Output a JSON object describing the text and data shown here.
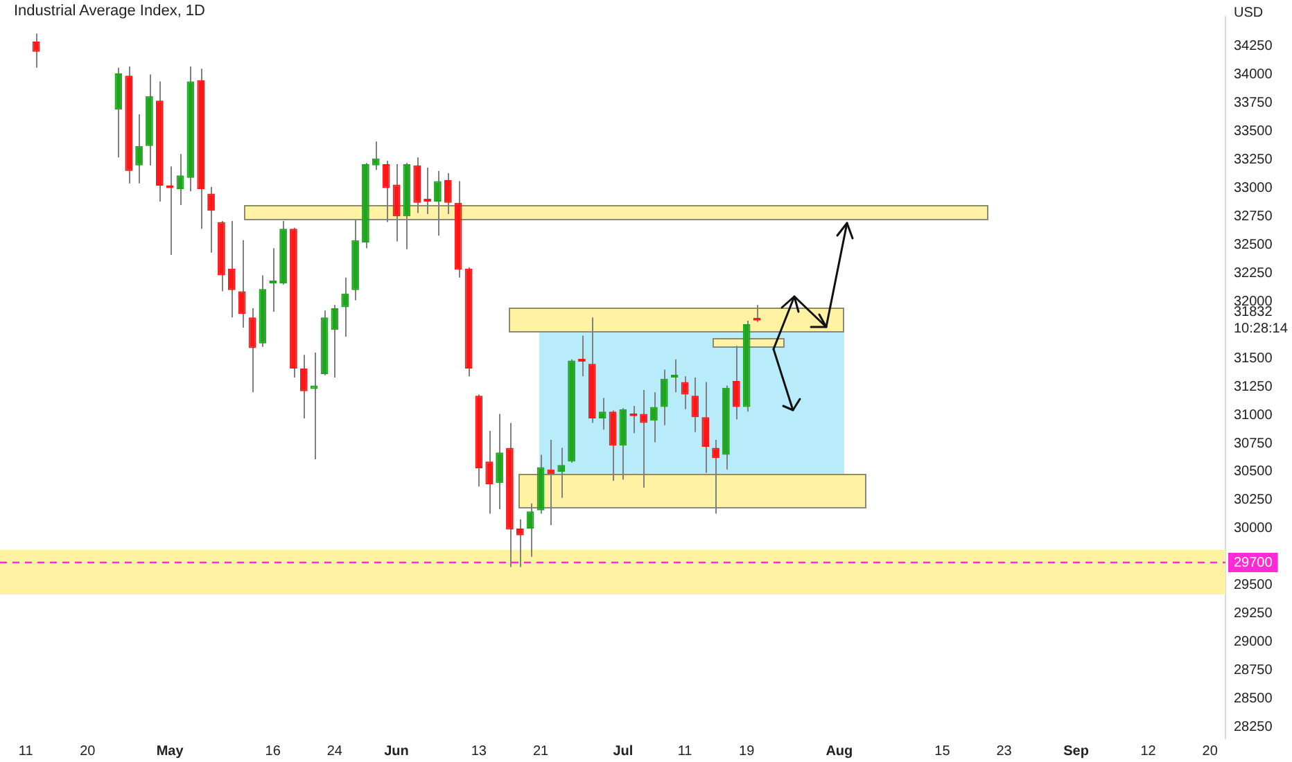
{
  "chart_data": {
    "type": "candlestick",
    "title": "Industrial Average Index, 1D",
    "ylabel": "USD",
    "categories": [
      null,
      null,
      "11",
      null,
      null,
      null,
      null,
      null,
      "20",
      null,
      null,
      null,
      null,
      null,
      null,
      null,
      "May",
      null,
      null,
      null,
      null,
      null,
      null,
      null,
      null,
      null,
      "16",
      null,
      null,
      null,
      null,
      null,
      "24",
      null,
      null,
      null,
      null,
      null,
      "Jun",
      null,
      null,
      null,
      null,
      null,
      null,
      null,
      "13",
      null,
      null,
      null,
      null,
      null,
      "21",
      null,
      null,
      null,
      null,
      null,
      null,
      null,
      "Jul",
      null,
      null,
      null,
      null,
      null,
      "11",
      null,
      null,
      null,
      null,
      null,
      "19",
      null,
      null,
      null,
      null,
      null,
      null,
      null,
      null,
      "Aug",
      null,
      null,
      null,
      null,
      null,
      null,
      null,
      null,
      null,
      "15",
      null,
      null,
      null,
      null,
      null,
      "23",
      null,
      null,
      null,
      null,
      null,
      null,
      "Sep",
      null,
      null,
      null,
      null,
      null,
      null,
      "12",
      null,
      null,
      null,
      null,
      null,
      "20",
      null
    ],
    "ohlc": [
      null,
      null,
      null,
      [
        34290,
        34360,
        34060,
        34200
      ],
      null,
      null,
      null,
      null,
      null,
      null,
      null,
      [
        33690,
        34060,
        33270,
        34010
      ],
      [
        33990,
        34070,
        33040,
        33150
      ],
      [
        33200,
        33650,
        33040,
        33370
      ],
      [
        33370,
        34000,
        33200,
        33810
      ],
      [
        33770,
        33940,
        32880,
        33020
      ],
      [
        33020,
        33190,
        32410,
        33000
      ],
      [
        32990,
        33300,
        32850,
        33110
      ],
      [
        33090,
        34070,
        32970,
        33940
      ],
      [
        33950,
        34050,
        32640,
        32990
      ],
      [
        32950,
        33010,
        32430,
        32800
      ],
      [
        32700,
        32710,
        32090,
        32230
      ],
      [
        32290,
        32710,
        31860,
        32100
      ],
      [
        32090,
        32540,
        31770,
        31890
      ],
      [
        31860,
        31940,
        31200,
        31590
      ],
      [
        31630,
        32230,
        31600,
        32110
      ],
      [
        32160,
        32470,
        31910,
        32170
      ],
      [
        32160,
        32710,
        32150,
        32640
      ],
      [
        32640,
        32650,
        31330,
        31410
      ],
      [
        31410,
        31530,
        30970,
        31210
      ],
      [
        31230,
        31550,
        30610,
        31260
      ],
      [
        31360,
        31920,
        31350,
        31860
      ],
      [
        31750,
        31970,
        31330,
        31940
      ],
      [
        31950,
        32210,
        31690,
        32070
      ],
      [
        32100,
        32720,
        32010,
        32540
      ],
      [
        32520,
        33220,
        32470,
        33210
      ],
      [
        33200,
        33410,
        33160,
        33260
      ],
      [
        33210,
        33240,
        32700,
        33000
      ],
      [
        33030,
        33210,
        32530,
        32750
      ],
      [
        32750,
        33220,
        32460,
        33210
      ],
      [
        33200,
        33270,
        32780,
        32870
      ],
      [
        32900,
        33180,
        32770,
        32880
      ],
      [
        32880,
        33150,
        32580,
        33060
      ],
      [
        33070,
        33130,
        32770,
        32870
      ],
      [
        32870,
        33060,
        32210,
        32280
      ],
      [
        32290,
        32300,
        31340,
        31410
      ],
      [
        31170,
        31180,
        30370,
        30530
      ],
      [
        30590,
        30860,
        30130,
        30390
      ],
      [
        30400,
        31010,
        30170,
        30670
      ],
      [
        30710,
        30930,
        29660,
        29990
      ],
      [
        30000,
        30080,
        29660,
        29940
      ],
      [
        30000,
        30220,
        29750,
        30150
      ],
      [
        30160,
        30650,
        30130,
        30540
      ],
      [
        30520,
        30780,
        30030,
        30480
      ],
      [
        30500,
        30710,
        30270,
        30560
      ],
      [
        30590,
        31490,
        30580,
        31480
      ],
      [
        31490,
        31700,
        31340,
        31470
      ],
      [
        31450,
        31860,
        30930,
        30970
      ],
      [
        30970,
        31150,
        30870,
        31030
      ],
      [
        31030,
        31040,
        30420,
        30730
      ],
      [
        30730,
        31060,
        30430,
        31050
      ],
      [
        31010,
        31080,
        30840,
        30990
      ],
      [
        31010,
        31220,
        30360,
        30930
      ],
      [
        30950,
        31200,
        30760,
        31070
      ],
      [
        31070,
        31400,
        30910,
        31320
      ],
      [
        31330,
        31490,
        31200,
        31340
      ],
      [
        31290,
        31340,
        31050,
        31180
      ],
      [
        31170,
        31330,
        30850,
        30980
      ],
      [
        30980,
        31290,
        30490,
        30720
      ],
      [
        30710,
        30780,
        30130,
        30620
      ],
      [
        30650,
        31260,
        30520,
        31240
      ],
      [
        31300,
        31610,
        30960,
        31070
      ],
      [
        31070,
        31830,
        31030,
        31800
      ],
      [
        31840,
        31970,
        31820,
        31832
      ],
      null,
      null,
      null,
      null,
      null,
      null,
      null,
      null,
      null,
      null,
      null,
      null,
      null,
      null,
      null,
      null,
      null,
      null,
      null,
      null,
      null,
      null,
      null,
      null,
      null,
      null,
      null,
      null,
      null,
      null,
      null,
      null,
      null,
      null,
      null,
      null,
      null,
      null,
      null,
      null,
      null,
      null,
      null,
      null,
      null
    ],
    "colors": [
      null,
      null,
      null,
      "#ff1717",
      null,
      null,
      null,
      null,
      null,
      null,
      null,
      "#1fa51f",
      "#ff1717",
      "#1fa51f",
      "#1fa51f",
      "#ff1717",
      "#ff1717",
      "#1fa51f",
      "#1fa51f",
      "#ff1717",
      "#ff1717",
      "#ff1717",
      "#ff1717",
      "#ff1717",
      "#ff1717",
      "#1fa51f",
      "#1fa51f",
      "#1fa51f",
      "#ff1717",
      "#ff1717",
      "#1fa51f",
      "#1fa51f",
      "#1fa51f",
      "#1fa51f",
      "#1fa51f",
      "#1fa51f",
      "#1fa51f",
      "#ff1717",
      "#ff1717",
      "#1fa51f",
      "#ff1717",
      "#ff1717",
      "#1fa51f",
      "#ff1717",
      "#ff1717",
      "#ff1717",
      "#ff1717",
      "#ff1717",
      "#1fa51f",
      "#ff1717",
      "#ff1717",
      "#1fa51f",
      "#1fa51f",
      "#ff1717",
      "#1fa51f",
      "#1fa51f",
      "#ff1717",
      "#ff1717",
      "#1fa51f",
      "#ff1717",
      "#1fa51f",
      "#ff1717",
      "#ff1717",
      "#1fa51f",
      "#1fa51f",
      "#1fa51f",
      "#ff1717",
      "#ff1717",
      "#ff1717",
      "#ff1717",
      "#1fa51f",
      "#ff1717",
      "#1fa51f",
      "#ff1717",
      null,
      null,
      null,
      null,
      null,
      null,
      null,
      null,
      null,
      null,
      null,
      null,
      null,
      null,
      null,
      null,
      null,
      null,
      null,
      null,
      null,
      null,
      null,
      null,
      null,
      null,
      null,
      null,
      null,
      null,
      null,
      null,
      null,
      null,
      null,
      null,
      null,
      null,
      null,
      null,
      null,
      null,
      null,
      null,
      null
    ],
    "ylim": [
      28150,
      34510
    ],
    "yticks": [
      28250,
      28500,
      28750,
      29000,
      29250,
      29500,
      30000,
      30250,
      30500,
      30750,
      31000,
      31250,
      31500,
      {
        "value": 31832,
        "label": "31832\n10:28:14"
      },
      32000,
      32250,
      32500,
      32750,
      33000,
      33250,
      33500,
      33750,
      34000,
      34250
    ],
    "bands": [
      {
        "axis": "y",
        "from": 29420,
        "to": 29810,
        "color": "#fff3a3"
      }
    ],
    "ref_lines": [
      {
        "axis": "y",
        "value": 29700,
        "label": "29700",
        "color": "#ff2bd6",
        "line_style": "dashed"
      }
    ],
    "grid": false,
    "legend": false
  }
}
